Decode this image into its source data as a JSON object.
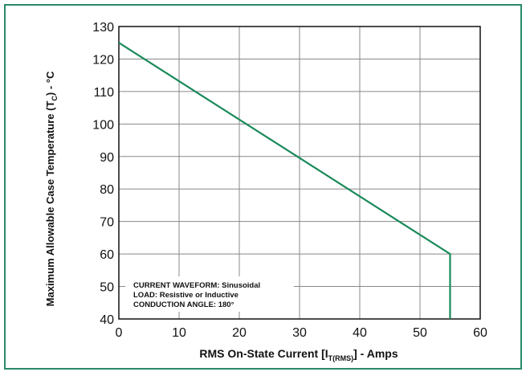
{
  "chart_data": {
    "type": "line",
    "title": "",
    "xlabel": {
      "prefix": "RMS On-State Current [I",
      "subscript": "T(RMS)",
      "suffix": "] - Amps"
    },
    "ylabel": {
      "prefix": "Maximum Allowable Case Temperature (T",
      "subscript": "C",
      "suffix": ") - °C"
    },
    "xlim": [
      0,
      60
    ],
    "ylim": [
      40,
      130
    ],
    "xticks": [
      0,
      10,
      20,
      30,
      40,
      50,
      60
    ],
    "yticks": [
      40,
      50,
      60,
      70,
      80,
      90,
      100,
      110,
      120,
      130
    ],
    "grid": true,
    "series": [
      {
        "color": "#1a8a5a",
        "points": [
          {
            "x": 0,
            "y": 125
          },
          {
            "x": 55,
            "y": 60
          },
          {
            "x": 55,
            "y": 40
          }
        ]
      }
    ],
    "annotation_lines": [
      "CURRENT WAVEFORM: Sinusoidal",
      "LOAD: Resistive or Inductive",
      "CONDUCTION ANGLE: 180°"
    ],
    "colors": {
      "frame": "#2a8a6a",
      "grid": "#888888",
      "axis": "#111111"
    }
  }
}
